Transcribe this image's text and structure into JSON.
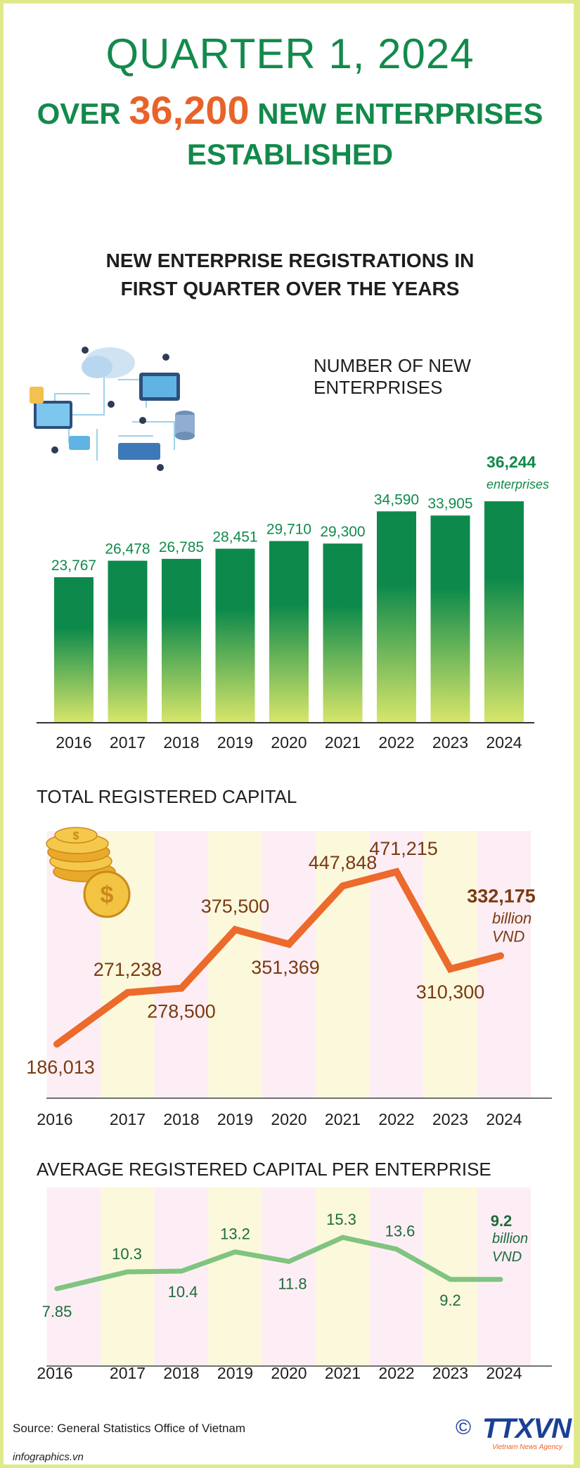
{
  "header": {
    "title_line1": "QUARTER 1, 2024",
    "title_line2_pre": "OVER ",
    "title_line2_highlight": "36,200",
    "title_line2_post": " NEW ENTERPRISES",
    "title_line3": "ESTABLISHED",
    "subtitle_line1": "NEW ENTERPRISE REGISTRATIONS IN",
    "subtitle_line2": "FIRST QUARTER OVER THE YEARS"
  },
  "chart_data": [
    {
      "type": "bar",
      "title": "NUMBER OF NEW ENTERPRISES",
      "categories": [
        "2016",
        "2017",
        "2018",
        "2019",
        "2020",
        "2021",
        "2022",
        "2023",
        "2024"
      ],
      "values": [
        23767,
        26478,
        26785,
        28451,
        29710,
        29300,
        34590,
        33905,
        36244
      ],
      "labels": [
        "23,767",
        "26,478",
        "26,785",
        "28,451",
        "29,710",
        "29,300",
        "34,590",
        "33,905",
        "36,244"
      ],
      "last_unit": "enterprises",
      "colors": {
        "top": "#0d8a4b",
        "bottom": "#d8e66a",
        "highlight": "#128a4b"
      }
    },
    {
      "type": "line",
      "title": "TOTAL REGISTERED CAPITAL",
      "categories": [
        "2016",
        "2017",
        "2018",
        "2019",
        "2020",
        "2021",
        "2022",
        "2023",
        "2024"
      ],
      "values": [
        186013,
        271238,
        278500,
        375500,
        351369,
        447848,
        471215,
        310300,
        332175
      ],
      "labels": [
        "186,013",
        "271,238",
        "278,500",
        "375,500",
        "351,369",
        "447,848",
        "471,215",
        "310,300",
        "332,175"
      ],
      "last_unit_line1": "billion",
      "last_unit_line2": "VND",
      "colors": {
        "line": "#ec6a2b",
        "label": "#7a3a12",
        "band_a": "#fdeef5",
        "band_b": "#fbf8dc"
      }
    },
    {
      "type": "line",
      "title": "AVERAGE REGISTERED CAPITAL PER ENTERPRISE",
      "categories": [
        "2016",
        "2017",
        "2018",
        "2019",
        "2020",
        "2021",
        "2022",
        "2023",
        "2024"
      ],
      "values": [
        7.85,
        10.3,
        10.4,
        13.2,
        11.8,
        15.3,
        13.6,
        9.2,
        9.2
      ],
      "labels": [
        "7.85",
        "10.3",
        "10.4",
        "13.2",
        "11.8",
        "15.3",
        "13.6",
        "9.2",
        "9.2"
      ],
      "last_unit_line1": "billion",
      "last_unit_line2": "VND",
      "colors": {
        "line": "#7fc47f",
        "label": "#1e6b3c",
        "band_a": "#fdeef5",
        "band_b": "#fbf8dc"
      }
    }
  ],
  "footer": {
    "source": "Source: General Statistics Office of Vietnam",
    "site": "infographics.vn",
    "logo": "TTXVN",
    "logo_sub": "Vietnam News Agency",
    "copyright": "©"
  },
  "icons": [
    "cloud-network-illustration",
    "gold-coins-icon"
  ]
}
